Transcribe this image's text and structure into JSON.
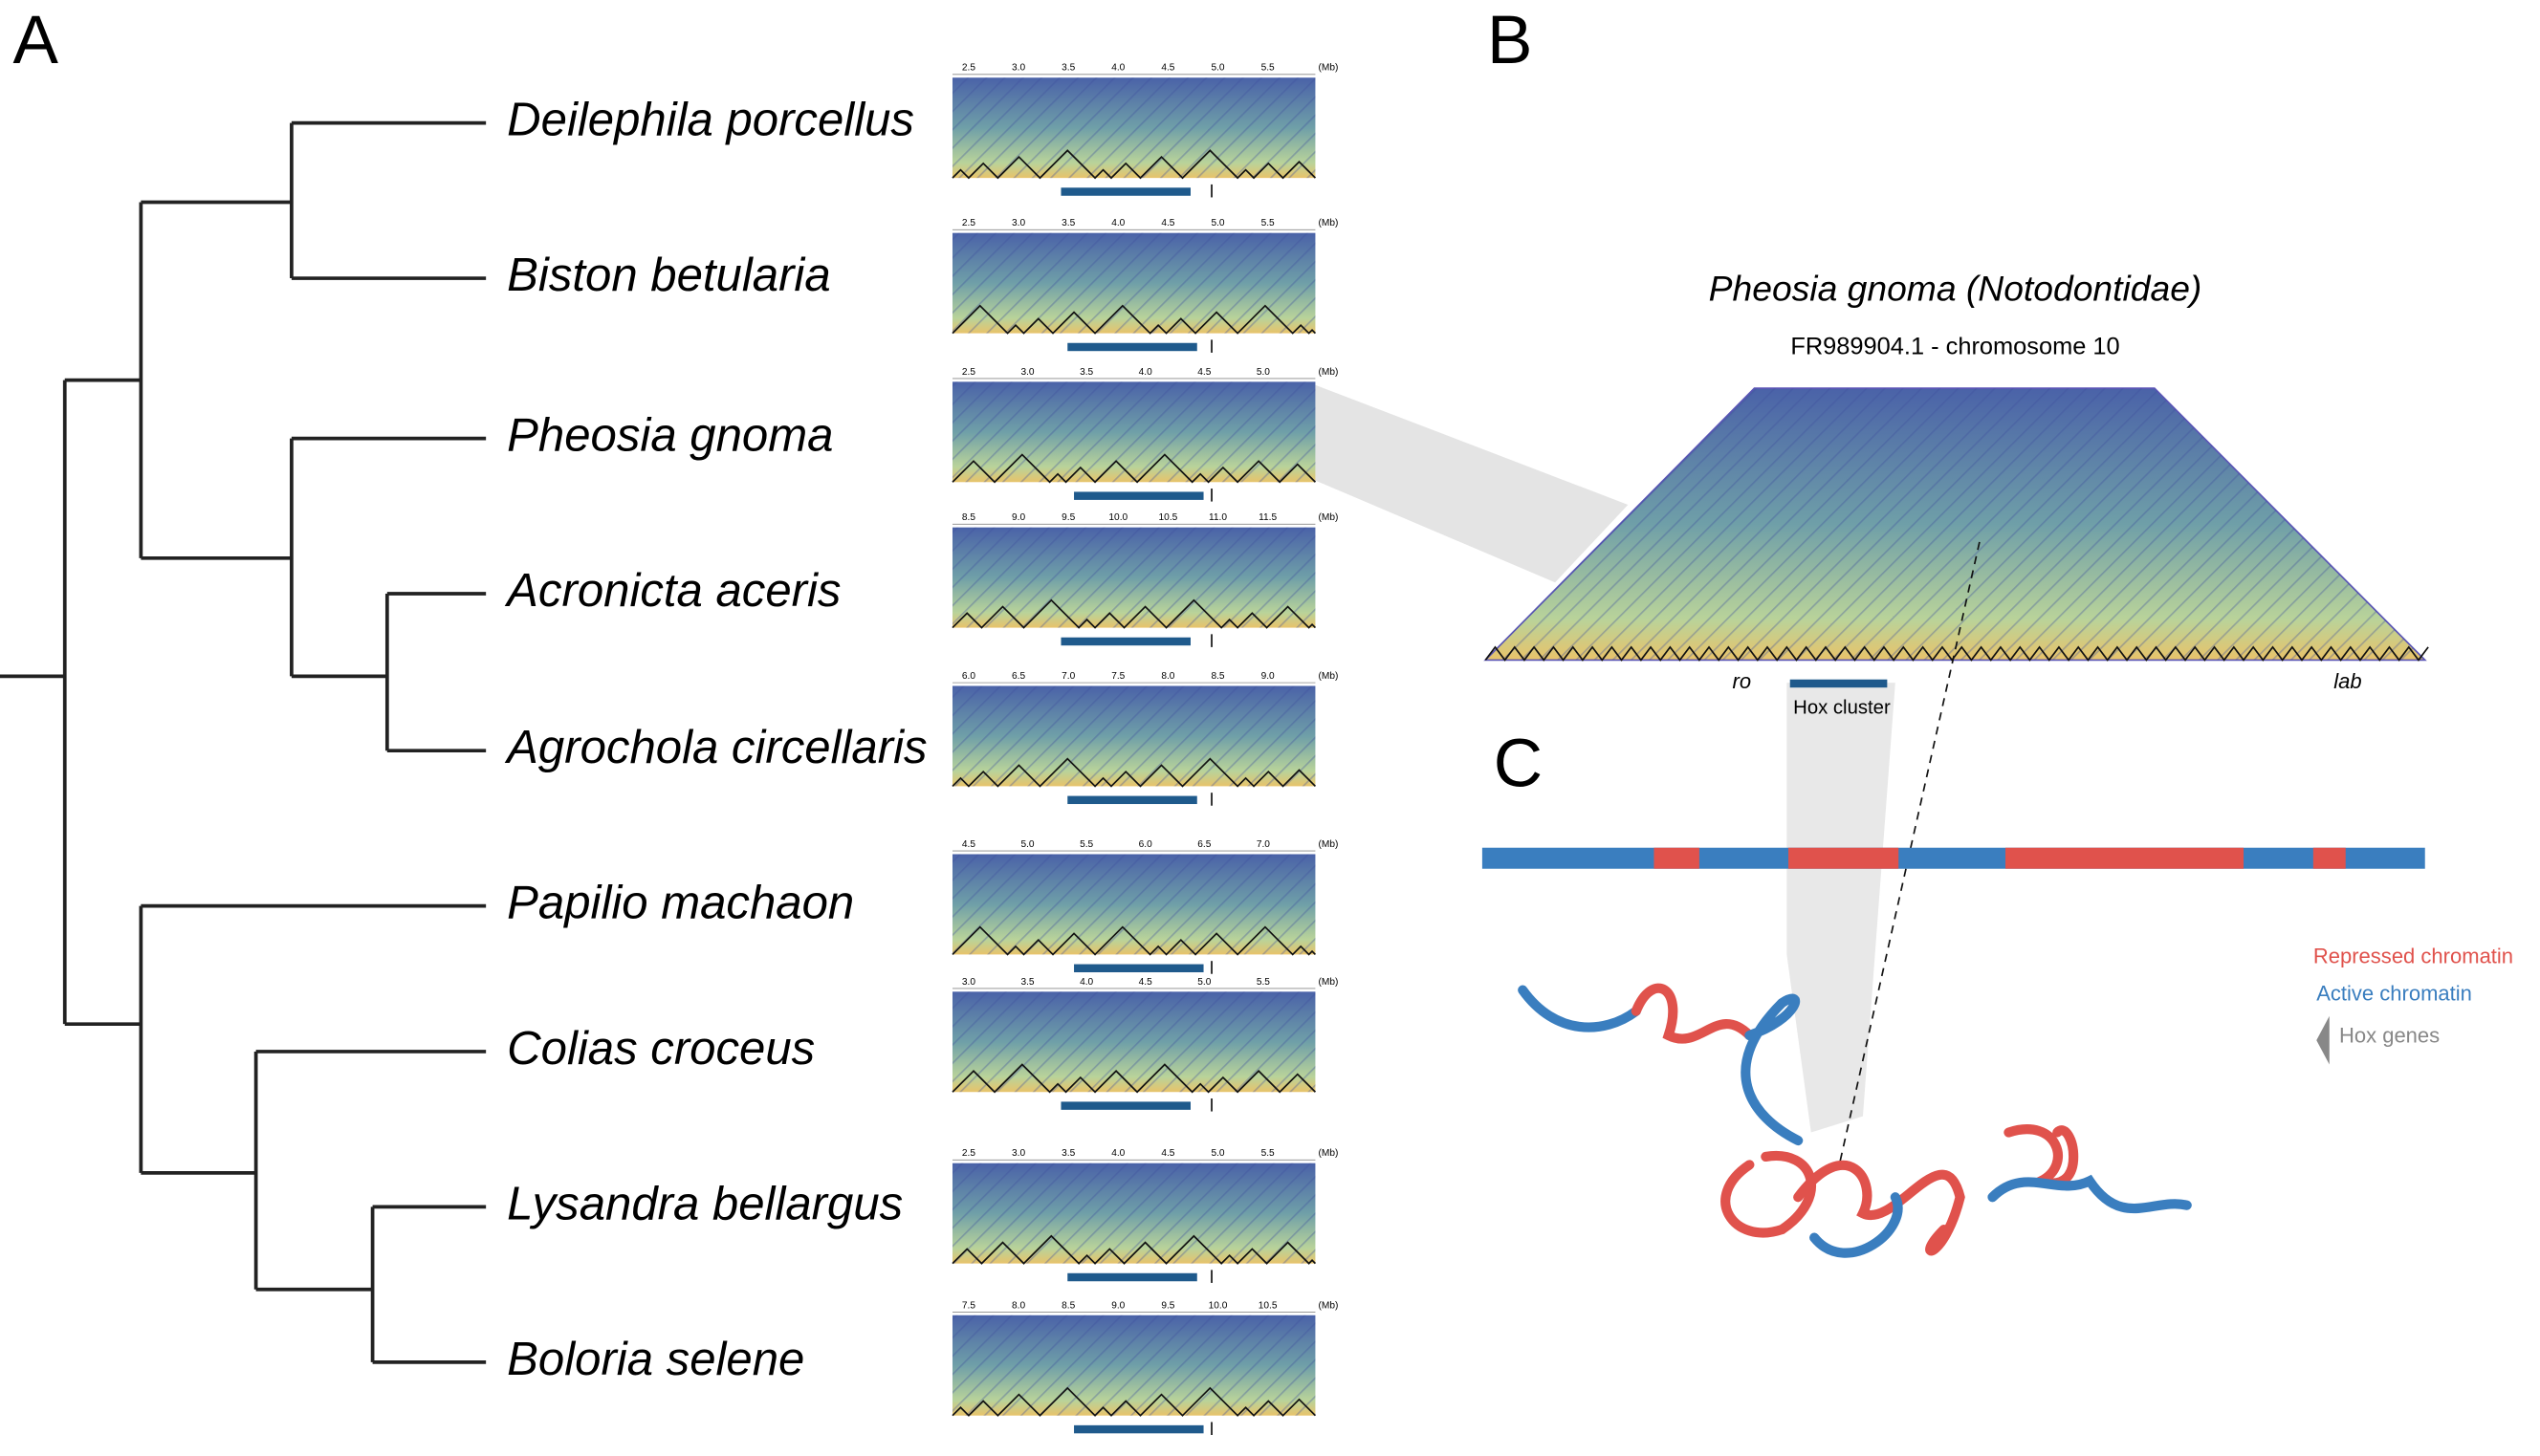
{
  "panels": [
    "A",
    "B",
    "C"
  ],
  "species": [
    {
      "name": "Deilephila porcellus",
      "ticks": [
        "2.5",
        "3.0",
        "3.5",
        "4.0",
        "4.5",
        "5.0",
        "5.5",
        "(Mb)"
      ]
    },
    {
      "name": "Biston betularia",
      "ticks": [
        "2.5",
        "3.0",
        "3.5",
        "4.0",
        "4.5",
        "5.0",
        "5.5",
        "(Mb)"
      ]
    },
    {
      "name": "Pheosia gnoma",
      "ticks": [
        "2.5",
        "3.0",
        "3.5",
        "4.0",
        "4.5",
        "5.0",
        "(Mb)"
      ]
    },
    {
      "name": "Acronicta aceris",
      "ticks": [
        "8.5",
        "9.0",
        "9.5",
        "10.0",
        "10.5",
        "11.0",
        "11.5",
        "(Mb)"
      ]
    },
    {
      "name": "Agrochola circellaris",
      "ticks": [
        "6.0",
        "6.5",
        "7.0",
        "7.5",
        "8.0",
        "8.5",
        "9.0",
        "(Mb)"
      ]
    },
    {
      "name": "Papilio machaon",
      "ticks": [
        "4.5",
        "5.0",
        "5.5",
        "6.0",
        "6.5",
        "7.0",
        "(Mb)"
      ]
    },
    {
      "name": "Colias croceus",
      "ticks": [
        "3.0",
        "3.5",
        "4.0",
        "4.5",
        "5.0",
        "5.5",
        "(Mb)"
      ]
    },
    {
      "name": "Lysandra bellargus",
      "ticks": [
        "2.5",
        "3.0",
        "3.5",
        "4.0",
        "4.5",
        "5.0",
        "5.5",
        "(Mb)"
      ]
    },
    {
      "name": "Boloria selene",
      "ticks": [
        "7.5",
        "8.0",
        "8.5",
        "9.0",
        "9.5",
        "10.0",
        "10.5",
        "(Mb)"
      ]
    }
  ],
  "panel_b": {
    "title": "Pheosia gnoma (Notodontidae)",
    "subtitle": "FR989904.1 - chromosome 10",
    "left_gene": "ro",
    "cluster": "Hox cluster",
    "right_gene": "lab"
  },
  "legend": [
    "Repressed chromatin",
    "Active chromatin",
    "Hox genes"
  ]
}
